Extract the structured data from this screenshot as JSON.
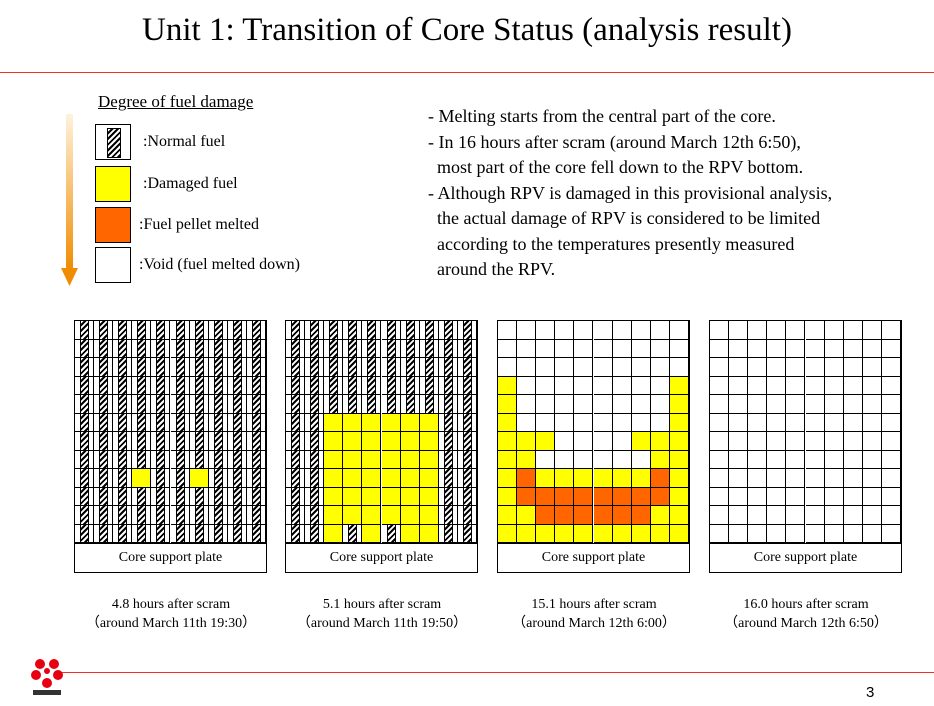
{
  "title": "Unit 1: Transition of Core Status (analysis result)",
  "legend": {
    "title": "Degree of fuel damage",
    "items": [
      {
        "key": "normal",
        "label": ":Normal fuel"
      },
      {
        "key": "damaged",
        "label": ":Damaged fuel",
        "color": "#ffff00"
      },
      {
        "key": "melted",
        "label": ":Fuel pellet melted",
        "color": "#ff6600"
      },
      {
        "key": "void",
        "label": ":Void (fuel melted down)",
        "color": "#ffffff"
      }
    ]
  },
  "notes": [
    "- Melting starts from the central part of the core.",
    "- In 16 hours after scram (around March 12th 6:50),",
    "  most part of the core fell down to the RPV bottom.",
    "- Although RPV is damaged in this provisional analysis,",
    "  the actual damage of RPV is considered to be limited",
    "  according to the temperatures presently measured",
    "  around the RPV."
  ],
  "colors": {
    "accent_line": "#e8332a",
    "damaged": "#ffff00",
    "melted": "#ff6600",
    "arrow_top": "#ffe0b0",
    "arrow_bottom": "#f08c00"
  },
  "panels": [
    {
      "plate_label": "Core support plate",
      "caption_line1": "4.8 hours after scram",
      "caption_line2": "（around March 11th 19:30）",
      "rows": [
        "RVRVRVRVRVRVRVRVRVR",
        "RVRVRVRVRVRVRVRVRVR",
        "RVRVRVRVRVRVRVRVRVR",
        "RVRVRVRVRVRVRVRVRVR",
        "RVRVRVRVRVRVRVRVRVR",
        "RVRVRVRVRVRVRVRVRVR",
        "RVRVRVRVRVRVRVRVRVR",
        "RVRVRVRVRVRVRVRVRVR",
        "RVRVRVRVRVRVRVRVRVR",
        "RVRVRVRVRVRVRVRVRVR",
        "RVRVRVRVRVRVRVRVRVR",
        "RVRVRVRVRVRVRVRVRVR",
        "RVRVRVRVRVRVRVRVRVR",
        "RVRVRVRVRVRVRVRVRVR",
        "RVRVRVRVRVRVRVRVRVR",
        "RVRVRVRVRVRVRVRVRVR",
        "RVRVRVRVRVRVRVRVRVR",
        "RVRVRVRVRVRVRVRVRVR",
        "RVRVRVRVRVRVRVRVRVR",
        "RVRVRVRVRVRVRVRVRVR",
        "RVRVRVRVRVRVRVRVRVR",
        "RVRVRVRVRVRVRVRVRVR",
        "RVRVRVRVRVRVRVRVRVR"
      ]
    },
    {
      "plate_label": "Core support plate",
      "caption_line1": "5.1 hours after scram",
      "caption_line2": "（around March 11th 19:50）",
      "rows": []
    },
    {
      "plate_label": "Core support plate",
      "caption_line1": "15.1 hours after scram",
      "caption_line2": "（around March 12th 6:00）",
      "rows": []
    },
    {
      "plate_label": "Core support plate",
      "caption_line1": "16.0 hours after scram",
      "caption_line2": "（around March 12th 6:50）",
      "rows": []
    }
  ],
  "page_number": "3"
}
